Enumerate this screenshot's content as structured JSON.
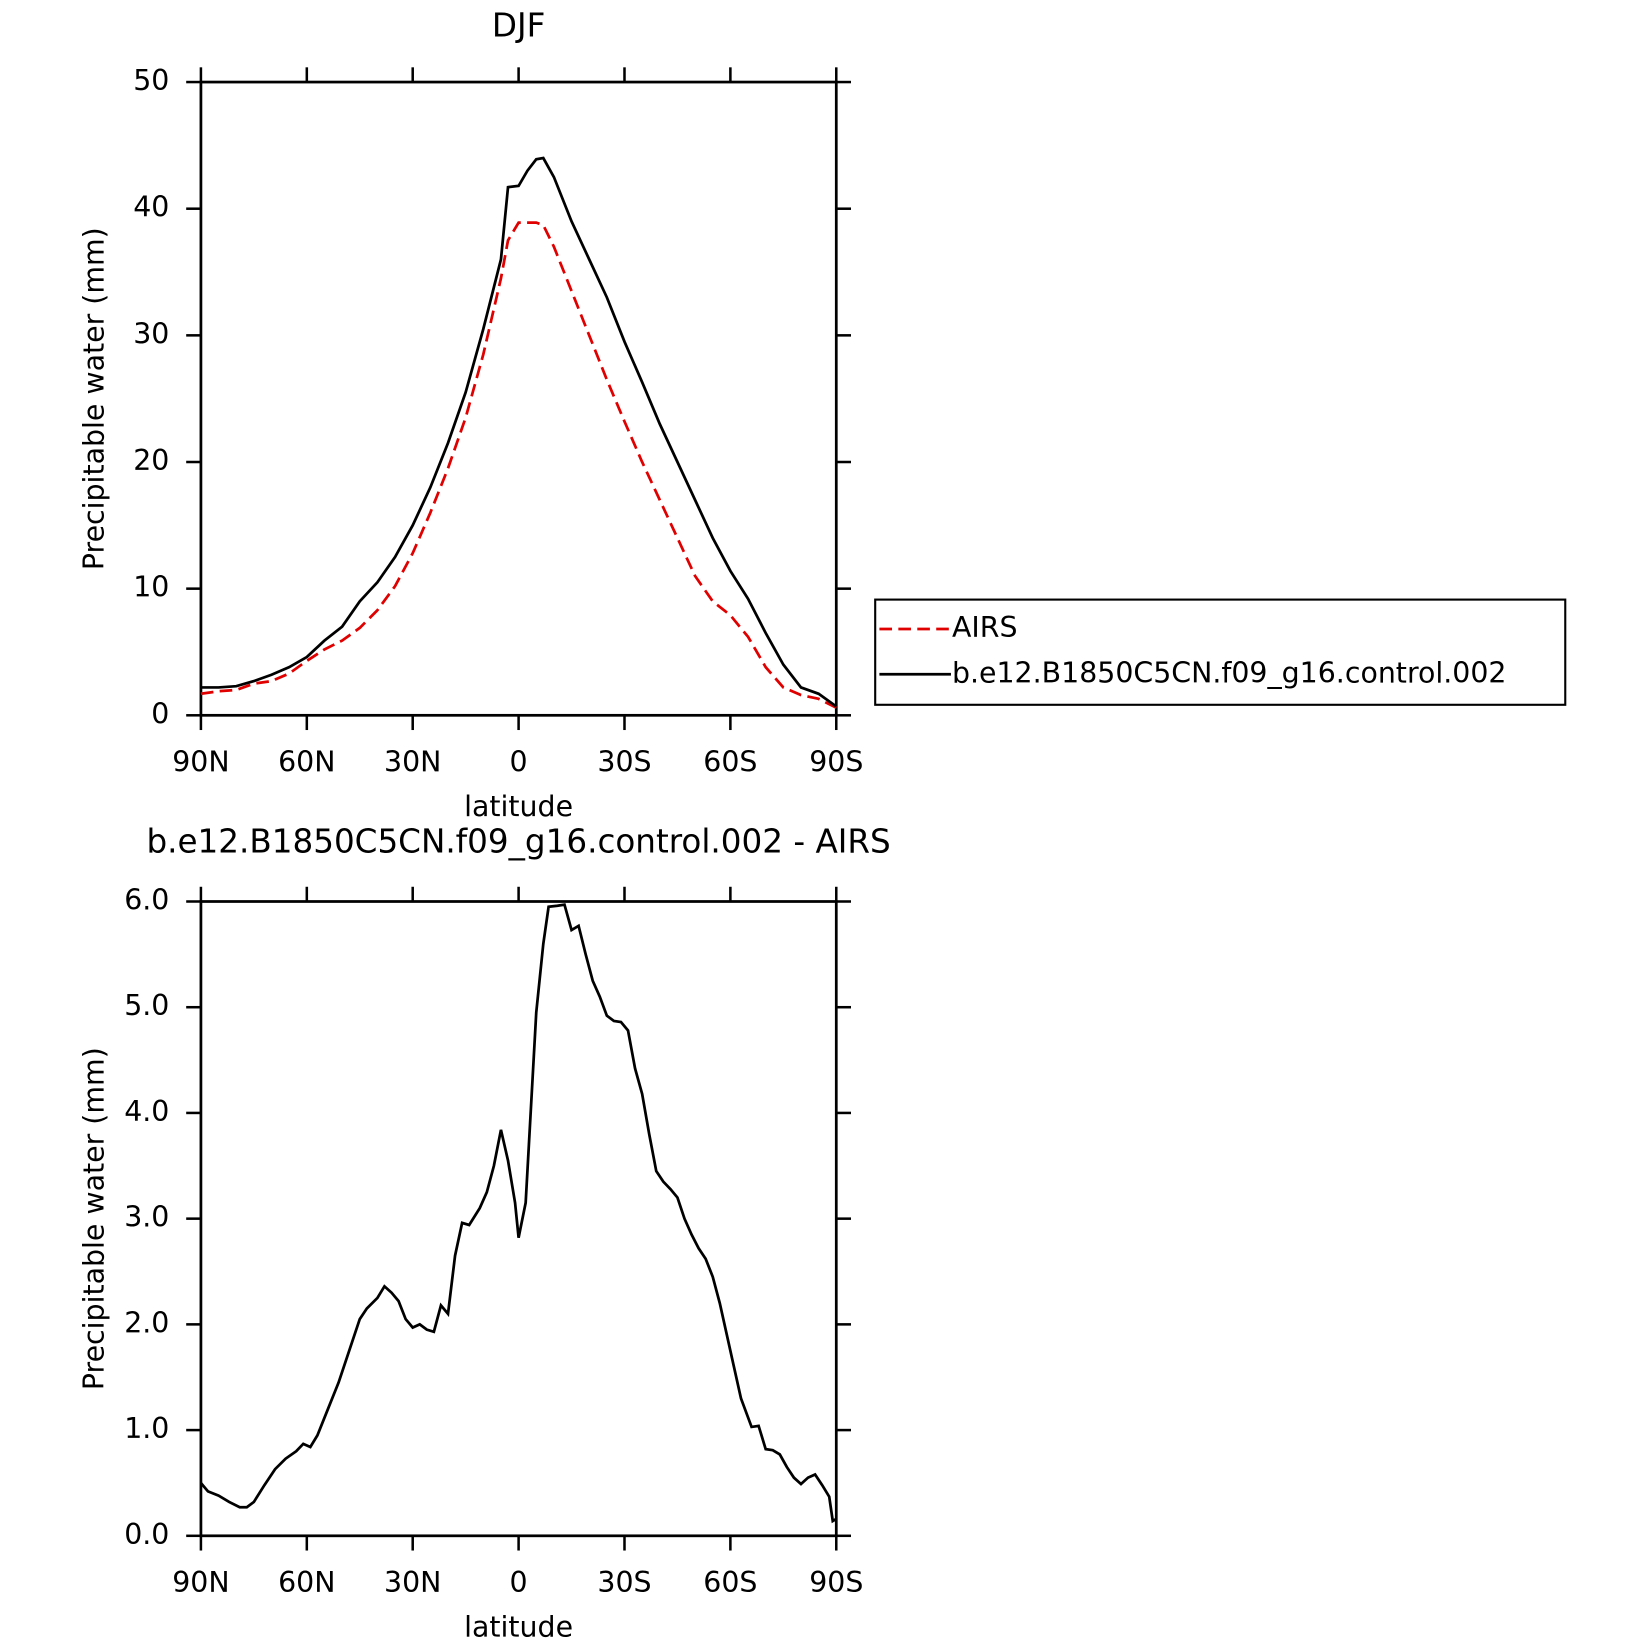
{
  "chart_data": [
    {
      "type": "line",
      "title": "DJF",
      "xlabel": "latitude",
      "ylabel": "Precipitable water (mm)",
      "x": [
        90,
        85,
        80,
        75,
        70,
        65,
        60,
        55,
        50,
        45,
        40,
        35,
        30,
        25,
        20,
        15,
        10,
        5,
        3,
        0,
        -2.5,
        -5,
        -7,
        -10,
        -15,
        -20,
        -25,
        -30,
        -35,
        -40,
        -45,
        -50,
        -55,
        -60,
        -65,
        -70,
        -75,
        -80,
        -85,
        -90
      ],
      "series": [
        {
          "name": "AIRS",
          "color": "#e00000",
          "dash": true,
          "values": [
            1.7,
            1.9,
            2.0,
            2.5,
            2.7,
            3.3,
            4.3,
            5.2,
            5.9,
            6.9,
            8.3,
            10.2,
            12.8,
            16,
            19.5,
            23.5,
            28.5,
            34.5,
            37.5,
            38.9,
            38.9,
            38.9,
            38.7,
            37,
            33.5,
            30,
            26.5,
            23.2,
            20,
            17,
            14,
            11,
            9,
            7.9,
            6.2,
            3.8,
            2.2,
            1.6,
            1.3,
            0.6
          ]
        },
        {
          "name": "b.e12.B1850C5CN.f09_g16.control.002",
          "color": "#000000",
          "dash": false,
          "values": [
            2.2,
            2.2,
            2.3,
            2.7,
            3.2,
            3.8,
            4.6,
            5.9,
            7.0,
            9.0,
            10.5,
            12.5,
            15,
            18,
            21.5,
            25.5,
            30.5,
            36,
            41.7,
            41.8,
            43,
            43.9,
            44,
            42.5,
            39,
            36,
            33,
            29.5,
            26.3,
            23,
            20,
            17,
            14,
            11.4,
            9.2,
            6.5,
            4.0,
            2.2,
            1.7,
            0.7
          ]
        }
      ],
      "xlim": [
        90,
        -90
      ],
      "xticks": [
        {
          "value": 90,
          "label": "90N"
        },
        {
          "value": 60,
          "label": "60N"
        },
        {
          "value": 30,
          "label": "30N"
        },
        0,
        {
          "value": -30,
          "label": "30S"
        },
        {
          "value": -60,
          "label": "60S"
        },
        {
          "value": -90,
          "label": "90S"
        }
      ],
      "ylim": [
        0,
        50
      ],
      "yticks": [
        0,
        10,
        20,
        30,
        40,
        50
      ],
      "legend": "right"
    },
    {
      "type": "line",
      "title": "b.e12.B1850C5CN.f09_g16.control.002 - AIRS",
      "xlabel": "latitude",
      "ylabel": "Precipitable water (mm)",
      "x": [
        90,
        88,
        85,
        82,
        79,
        77,
        75,
        72,
        69,
        66,
        63,
        61,
        59,
        57,
        54,
        51,
        48,
        45,
        43,
        40,
        38,
        36,
        34,
        32,
        30,
        28,
        26,
        24,
        22,
        20,
        18,
        16,
        14,
        11,
        9,
        7,
        5,
        3,
        1,
        0,
        -2,
        -5,
        -7,
        -8.5,
        -11,
        -13,
        -15,
        -17,
        -19,
        -21,
        -23,
        -25,
        -27,
        -29,
        -31,
        -33,
        -35,
        -37,
        -39,
        -41,
        -43,
        -45,
        -47,
        -49,
        -51,
        -53,
        -55,
        -57,
        -59,
        -61,
        -63,
        -66,
        -68,
        -70,
        -72,
        -74,
        -76,
        -78,
        -80,
        -82,
        -84,
        -86,
        -88,
        -89,
        -90
      ],
      "series": [
        {
          "name": "b.e12.B1850C5CN.f09_g16.control.002 - AIRS",
          "color": "#000000",
          "dash": false,
          "values": [
            0.5,
            0.42,
            0.38,
            0.32,
            0.27,
            0.27,
            0.32,
            0.48,
            0.63,
            0.73,
            0.8,
            0.87,
            0.84,
            0.95,
            1.2,
            1.45,
            1.75,
            2.05,
            2.15,
            2.25,
            2.36,
            2.3,
            2.22,
            2.05,
            1.97,
            2.0,
            1.95,
            1.93,
            2.18,
            2.1,
            2.65,
            2.96,
            2.94,
            3.1,
            3.25,
            3.5,
            3.84,
            3.55,
            3.15,
            2.82,
            3.15,
            4.95,
            5.6,
            5.95,
            5.96,
            5.97,
            5.73,
            5.77,
            5.5,
            5.25,
            5.1,
            4.92,
            4.87,
            4.86,
            4.78,
            4.42,
            4.18,
            3.8,
            3.45,
            3.35,
            3.28,
            3.2,
            3.0,
            2.85,
            2.72,
            2.62,
            2.45,
            2.2,
            1.9,
            1.6,
            1.3,
            1.03,
            1.04,
            0.82,
            0.81,
            0.77,
            0.65,
            0.55,
            0.49,
            0.55,
            0.58,
            0.48,
            0.37,
            0.14,
            0.16
          ]
        }
      ],
      "xlim": [
        90,
        -90
      ],
      "xticks": [
        {
          "value": 90,
          "label": "90N"
        },
        {
          "value": 60,
          "label": "60N"
        },
        {
          "value": 30,
          "label": "30N"
        },
        0,
        {
          "value": -30,
          "label": "30S"
        },
        {
          "value": -60,
          "label": "60S"
        },
        {
          "value": -90,
          "label": "90S"
        }
      ],
      "ylim": [
        0,
        6
      ],
      "yticks": [
        {
          "value": 0,
          "label": "0.0"
        },
        {
          "value": 1,
          "label": "1.0"
        },
        {
          "value": 2,
          "label": "2.0"
        },
        {
          "value": 3,
          "label": "3.0"
        },
        {
          "value": 4,
          "label": "4.0"
        },
        {
          "value": 5,
          "label": "5.0"
        },
        {
          "value": 6,
          "label": "6.0"
        }
      ]
    }
  ]
}
